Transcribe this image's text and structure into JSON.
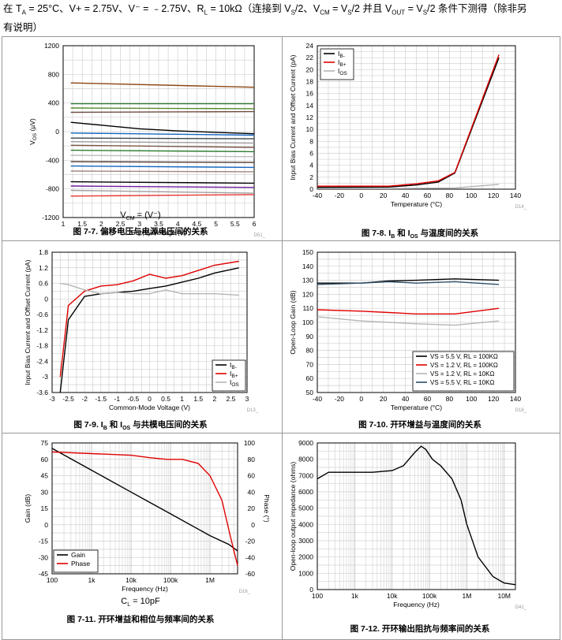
{
  "header": {
    "intro_line1_html": "在 T<sub>A</sub> = 25°C、V+ = 2.75V、V⁻ = ﹣2.75V、R<sub>L</sub> = 10kΩ（连接到 V<sub>S</sub>/2、V<sub>CM</sub> = V<sub>S</sub>/2 并且 V<sub>OUT</sub> = V<sub>S</sub>/2 条件下测得（除非另",
    "intro_line2": "有说明）"
  },
  "captions": {
    "fig7_7": "图 7-7. 偏移电压与电源电压间的关系",
    "fig7_8_html": "图 7-8. I<sub>B</sub> 和 I<sub>OS</sub> 与温度间的关系",
    "fig7_9_html": "图 7-9. I<sub>B</sub> 和 I<sub>OS</sub> 与共模电压间的关系",
    "fig7_10": "图 7-10. 开环增益与温度间的关系",
    "fig7_11": "图 7-11. 开环增益和相位与频率间的关系",
    "fig7_12": "图 7-12. 开环输出阻抗与频率间的关系"
  },
  "notes": {
    "fig7_7_html": "V<sub>CM</sub> = (V⁻)",
    "fig7_11_html": "C<sub>L</sub> = 10pF"
  },
  "chart_data": [
    {
      "id": "c7",
      "type": "line",
      "title": "",
      "xlabel": "Supply Voltage (V)",
      "ylabel": "V_OS (µV)",
      "xlim": [
        1,
        6
      ],
      "ylim": [
        -1200,
        1200
      ],
      "xticks": [
        1,
        1.5,
        2,
        2.5,
        3,
        3.5,
        4,
        4.5,
        5,
        5.5,
        6
      ],
      "yticks": [
        -1200,
        -800,
        -400,
        0,
        400,
        800,
        1200
      ],
      "grid": true,
      "code": "D51_",
      "series": [
        {
          "color": "#8B4513",
          "x": [
            1.2,
            6
          ],
          "y": [
            680,
            620
          ]
        },
        {
          "color": "#2e7d32",
          "x": [
            1.2,
            6
          ],
          "y": [
            390,
            390
          ]
        },
        {
          "color": "#558b2f",
          "x": [
            1.2,
            6
          ],
          "y": [
            330,
            320
          ]
        },
        {
          "color": "#6d4c41",
          "x": [
            1.2,
            6
          ],
          "y": [
            270,
            280
          ]
        },
        {
          "color": "#000000",
          "x": [
            1.2,
            2,
            3,
            4,
            5,
            6
          ],
          "y": [
            130,
            90,
            40,
            10,
            -10,
            -30
          ]
        },
        {
          "color": "#1565c0",
          "x": [
            1.2,
            6
          ],
          "y": [
            -20,
            -50
          ]
        },
        {
          "color": "#37474f",
          "x": [
            1.2,
            6
          ],
          "y": [
            -90,
            -100
          ]
        },
        {
          "color": "#9e9e9e",
          "x": [
            1.2,
            6
          ],
          "y": [
            -140,
            -160
          ]
        },
        {
          "color": "#795548",
          "x": [
            1.2,
            6
          ],
          "y": [
            -190,
            -220
          ]
        },
        {
          "color": "#2e7d32",
          "x": [
            1.2,
            6
          ],
          "y": [
            -260,
            -280
          ]
        },
        {
          "color": "#bdbdbd",
          "x": [
            1.2,
            6
          ],
          "y": [
            -330,
            -350
          ]
        },
        {
          "color": "#4e342e",
          "x": [
            1.2,
            6
          ],
          "y": [
            -420,
            -430
          ]
        },
        {
          "color": "#1565c0",
          "x": [
            1.2,
            6
          ],
          "y": [
            -480,
            -500
          ]
        },
        {
          "color": "#a1887f",
          "x": [
            1.2,
            6
          ],
          "y": [
            -550,
            -560
          ]
        },
        {
          "color": "#000000",
          "x": [
            1.2,
            6
          ],
          "y": [
            -700,
            -720
          ]
        },
        {
          "color": "#6a1b9a",
          "x": [
            1.2,
            6
          ],
          "y": [
            -760,
            -780
          ]
        },
        {
          "color": "#9e9e9e",
          "x": [
            1.2,
            6
          ],
          "y": [
            -820,
            -860
          ]
        },
        {
          "color": "#e53935",
          "x": [
            1.2,
            6
          ],
          "y": [
            -900,
            -880
          ]
        }
      ]
    },
    {
      "id": "c8",
      "type": "line",
      "title": "",
      "xlabel": "Temperature (°C)",
      "ylabel": "Input Bias Current and Offset Current (pA)",
      "xlim": [
        -40,
        140
      ],
      "ylim": [
        0,
        24
      ],
      "xticks": [
        -40,
        -20,
        0,
        20,
        40,
        60,
        80,
        100,
        120,
        140
      ],
      "yticks": [
        0,
        2,
        4,
        6,
        8,
        10,
        12,
        14,
        16,
        18,
        20,
        22,
        24
      ],
      "grid": true,
      "code": "D14_",
      "legend": {
        "position": "top-left",
        "entries": [
          "IB-",
          "IB+",
          "IOS"
        ]
      },
      "series": [
        {
          "name": "IB-",
          "color": "#000000",
          "x": [
            -40,
            25,
            50,
            70,
            85,
            125
          ],
          "y": [
            0.3,
            0.35,
            0.7,
            1.2,
            2.7,
            22
          ]
        },
        {
          "name": "IB+",
          "color": "#e00000",
          "x": [
            -40,
            25,
            50,
            70,
            85,
            125
          ],
          "y": [
            0.5,
            0.5,
            0.9,
            1.4,
            2.8,
            22.5
          ]
        },
        {
          "name": "IOS",
          "color": "#b5b5b5",
          "x": [
            -40,
            25,
            50,
            85,
            125
          ],
          "y": [
            0.1,
            0.1,
            0.15,
            0.2,
            0.8
          ]
        }
      ]
    },
    {
      "id": "c9",
      "type": "line",
      "title": "",
      "xlabel": "Common-Mode Voltage (V)",
      "ylabel": "Input Bias Current and Offset Current (pA)",
      "xlim": [
        -3,
        3
      ],
      "ylim": [
        -3.6,
        1.8
      ],
      "xticks": [
        -3,
        -2.5,
        -2,
        -1.5,
        -1,
        -0.5,
        0,
        0.5,
        1,
        1.5,
        2,
        2.5,
        3
      ],
      "yticks": [
        -3.6,
        -3,
        -2.4,
        -1.8,
        -1.2,
        -0.6,
        0,
        0.6,
        1.2,
        1.8
      ],
      "grid": true,
      "code": "D13_",
      "legend": {
        "position": "bottom-right",
        "entries": [
          "IB-",
          "IB+",
          "IOS"
        ]
      },
      "series": [
        {
          "name": "IB-",
          "color": "#000000",
          "x": [
            -2.75,
            -2.5,
            -2,
            -1.5,
            -1,
            -0.5,
            0,
            0.5,
            1,
            1.5,
            2,
            2.75
          ],
          "y": [
            -3.6,
            -0.8,
            0.1,
            0.2,
            0.25,
            0.3,
            0.4,
            0.5,
            0.65,
            0.8,
            1.0,
            1.2
          ]
        },
        {
          "name": "IB+",
          "color": "#e00000",
          "x": [
            -2.75,
            -2.5,
            -2,
            -1.5,
            -1,
            -0.5,
            0,
            0.5,
            1,
            1.5,
            2,
            2.75
          ],
          "y": [
            -3.0,
            -0.25,
            0.3,
            0.5,
            0.55,
            0.7,
            0.95,
            0.8,
            0.9,
            1.1,
            1.3,
            1.45
          ]
        },
        {
          "name": "IOS",
          "color": "#b5b5b5",
          "x": [
            -2.75,
            -2.5,
            -2,
            -1.5,
            -1,
            -0.5,
            0,
            0.5,
            1,
            1.5,
            2,
            2.75
          ],
          "y": [
            0.6,
            0.55,
            0.35,
            0.2,
            0.25,
            0.2,
            0.2,
            0.35,
            0.2,
            0.2,
            0.2,
            0.15
          ]
        }
      ]
    },
    {
      "id": "c10",
      "type": "line",
      "title": "",
      "xlabel": "Temperature (°C)",
      "ylabel": "Open-Loop Gain (dB)",
      "xlim": [
        -40,
        140
      ],
      "ylim": [
        50,
        150
      ],
      "xticks": [
        -40,
        -20,
        0,
        20,
        40,
        60,
        80,
        100,
        120,
        140
      ],
      "yticks": [
        50,
        60,
        70,
        80,
        90,
        100,
        110,
        120,
        130,
        140,
        150
      ],
      "grid": true,
      "code": "D18_",
      "legend": {
        "position": "bottom-right",
        "entries": [
          "VS = 5.5 V, RL = 100KΩ",
          "VS = 1.2 V, RL = 100KΩ",
          "VS = 1.2 V, RL = 10KΩ",
          "VS = 5.5 V, RL = 10KΩ"
        ]
      },
      "series": [
        {
          "name": "VS = 5.5 V, RL = 100KΩ",
          "color": "#000000",
          "x": [
            -40,
            0,
            25,
            50,
            85,
            125
          ],
          "y": [
            128,
            128,
            129.5,
            130,
            131,
            130
          ]
        },
        {
          "name": "VS = 1.2 V, RL = 100KΩ",
          "color": "#e00000",
          "x": [
            -40,
            0,
            25,
            50,
            85,
            125
          ],
          "y": [
            109,
            108,
            107,
            106,
            106,
            110
          ]
        },
        {
          "name": "VS = 1.2 V, RL = 10KΩ",
          "color": "#b5b5b5",
          "x": [
            -40,
            0,
            25,
            50,
            85,
            125
          ],
          "y": [
            104,
            101,
            100,
            99,
            98,
            101
          ]
        },
        {
          "name": "VS = 5.5 V, RL = 10KΩ",
          "color": "#2a4d69",
          "x": [
            -40,
            0,
            25,
            50,
            85,
            125
          ],
          "y": [
            127,
            128,
            129,
            128,
            129,
            127
          ]
        }
      ]
    },
    {
      "id": "c11",
      "type": "line",
      "title": "",
      "xlabel": "Frequency (Hz)",
      "ylabel": "Gain (dB)",
      "ylabel2": "Phase (°)",
      "xscale": "log",
      "xlim": [
        100,
        5000000
      ],
      "ylim": [
        -45,
        75
      ],
      "ylim2": [
        -60,
        100
      ],
      "xticks": [
        100,
        1000,
        10000,
        100000,
        1000000
      ],
      "xticklabels": [
        "100",
        "1k",
        "10k",
        "100k",
        "1M"
      ],
      "yticks": [
        -45,
        -30,
        -15,
        0,
        15,
        30,
        45,
        60,
        75
      ],
      "yticks2": [
        -60,
        -40,
        -20,
        0,
        20,
        40,
        60,
        80,
        100
      ],
      "grid": true,
      "code": "D16_",
      "legend": {
        "position": "bottom-left",
        "entries": [
          "Gain",
          "Phase"
        ]
      },
      "series": [
        {
          "name": "Gain",
          "axis": "left",
          "color": "#000000",
          "x": [
            100,
            1000,
            10000,
            100000,
            1000000,
            3000000,
            5000000
          ],
          "y": [
            70,
            50,
            30,
            10,
            -10,
            -18,
            -24
          ]
        },
        {
          "name": "Phase",
          "axis": "right",
          "color": "#e00000",
          "x": [
            100,
            1000,
            10000,
            30000,
            80000,
            200000,
            500000,
            1000000,
            2000000,
            3500000,
            5000000
          ],
          "y": [
            89,
            87,
            85,
            82,
            80,
            80,
            75,
            60,
            30,
            -20,
            -50
          ]
        }
      ]
    },
    {
      "id": "c12",
      "type": "line",
      "title": "",
      "xlabel": "Frequency (Hz)",
      "ylabel": "Open-loop output impedance (ohms)",
      "xscale": "log",
      "xlim": [
        100,
        20000000
      ],
      "ylim": [
        0,
        9000
      ],
      "xticks": [
        100,
        1000,
        10000,
        100000,
        1000000,
        10000000
      ],
      "xticklabels": [
        "100",
        "1k",
        "10k",
        "100k",
        "1M",
        "10M"
      ],
      "yticks": [
        0,
        1000,
        2000,
        3000,
        4000,
        5000,
        6000,
        7000,
        8000,
        9000
      ],
      "grid": true,
      "code": "D41_",
      "series": [
        {
          "color": "#000000",
          "x": [
            100,
            200,
            500,
            1000,
            3000,
            10000,
            20000,
            40000,
            60000,
            80000,
            120000,
            200000,
            400000,
            700000,
            1000000,
            2000000,
            5000000,
            10000000,
            20000000
          ],
          "y": [
            6800,
            7200,
            7200,
            7200,
            7200,
            7300,
            7600,
            8400,
            8800,
            8600,
            8000,
            7600,
            6800,
            5500,
            4000,
            2000,
            800,
            400,
            300
          ]
        }
      ]
    }
  ]
}
